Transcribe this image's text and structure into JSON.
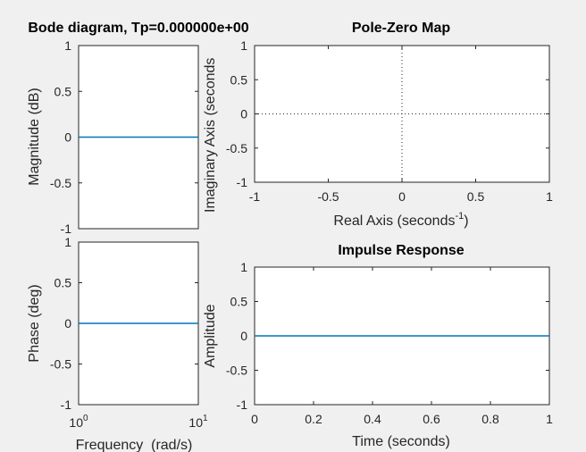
{
  "colors": {
    "background": "#f0f0f0",
    "axes_bg": "#ffffff",
    "line": "#0072bd",
    "axis": "#262626"
  },
  "chart_data": [
    {
      "id": "magnitude",
      "type": "line",
      "title": "Bode diagram, Tp=0.000000e+00",
      "xlabel": "",
      "ylabel": "Magnitude (dB)",
      "xscale": "log",
      "xlim": [
        1,
        10
      ],
      "ylim": [
        -1,
        1
      ],
      "yticks": [
        1,
        0.5,
        0,
        -0.5,
        -1
      ],
      "grid": false,
      "series": [
        {
          "x": [
            1,
            10
          ],
          "y": [
            0,
            0
          ]
        }
      ]
    },
    {
      "id": "phase",
      "type": "line",
      "title": "",
      "xlabel": "Frequency  (rad/s)",
      "ylabel": "Phase (deg)",
      "xscale": "log",
      "xlim": [
        1,
        10
      ],
      "ylim": [
        -1,
        1
      ],
      "yticks": [
        1,
        0.5,
        0,
        -0.5,
        -1
      ],
      "xticks": [
        {
          "base": "10",
          "exp": "0"
        },
        {
          "base": "10",
          "exp": "1"
        }
      ],
      "grid": false,
      "series": [
        {
          "x": [
            1,
            10
          ],
          "y": [
            0,
            0
          ]
        }
      ]
    },
    {
      "id": "pzmap",
      "type": "scatter",
      "title": "Pole-Zero Map",
      "xlabel_main": "Real Axis (seconds",
      "xlabel_sup": "-1",
      "xlabel_close": ")",
      "ylabel": "Imaginary Axis (seconds",
      "xlim": [
        -1,
        1
      ],
      "ylim": [
        -1,
        1
      ],
      "xticks": [
        -1,
        -0.5,
        0,
        0.5,
        1
      ],
      "yticks": [
        1,
        0.5,
        0,
        -0.5,
        -1
      ],
      "grid": false,
      "reference_lines": [
        "x=0",
        "y=0"
      ],
      "poles": [],
      "zeros": []
    },
    {
      "id": "impulse",
      "type": "line",
      "title": "Impulse Response",
      "xlabel": "Time (seconds)",
      "ylabel": "Amplitude",
      "xlim": [
        0,
        1
      ],
      "ylim": [
        -1,
        1
      ],
      "xticks": [
        0,
        0.2,
        0.4,
        0.6,
        0.8,
        1
      ],
      "yticks": [
        1,
        0.5,
        0,
        -0.5,
        -1
      ],
      "grid": false,
      "series": [
        {
          "x": [
            0,
            1
          ],
          "y": [
            0,
            0
          ]
        }
      ]
    }
  ]
}
